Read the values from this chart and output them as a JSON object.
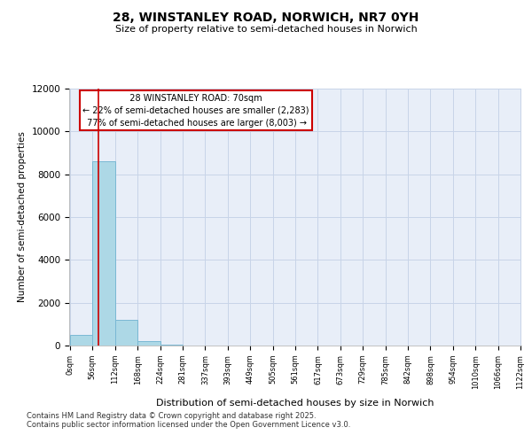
{
  "title": "28, WINSTANLEY ROAD, NORWICH, NR7 0YH",
  "subtitle": "Size of property relative to semi-detached houses in Norwich",
  "xlabel": "Distribution of semi-detached houses by size in Norwich",
  "ylabel": "Number of semi-detached properties",
  "property_size": 70,
  "property_label": "28 WINSTANLEY ROAD: 70sqm",
  "pct_smaller": 22,
  "pct_larger": 77,
  "count_smaller": 2283,
  "count_larger": 8003,
  "bin_width": 56,
  "bin_starts": [
    0,
    56,
    112,
    168,
    224,
    280,
    336,
    392,
    448,
    504,
    560,
    616,
    672,
    728,
    784,
    840,
    896,
    952,
    1008,
    1064
  ],
  "bin_labels": [
    "0sqm",
    "56sqm",
    "112sqm",
    "168sqm",
    "224sqm",
    "281sqm",
    "337sqm",
    "393sqm",
    "449sqm",
    "505sqm",
    "561sqm",
    "617sqm",
    "673sqm",
    "729sqm",
    "785sqm",
    "842sqm",
    "898sqm",
    "954sqm",
    "1010sqm",
    "1066sqm",
    "1122sqm"
  ],
  "bar_heights": [
    500,
    8600,
    1200,
    200,
    50,
    0,
    0,
    0,
    0,
    0,
    0,
    0,
    0,
    0,
    0,
    0,
    0,
    0,
    0,
    0
  ],
  "bar_color": "#add8e6",
  "bar_edgecolor": "#7ab8d4",
  "ylim": [
    0,
    12000
  ],
  "yticks": [
    0,
    2000,
    4000,
    6000,
    8000,
    10000,
    12000
  ],
  "red_line_color": "#cc0000",
  "annotation_box_color": "#cc0000",
  "grid_color": "#c8d4e8",
  "background_color": "#e8eef8",
  "footer_line1": "Contains HM Land Registry data © Crown copyright and database right 2025.",
  "footer_line2": "Contains public sector information licensed under the Open Government Licence v3.0."
}
